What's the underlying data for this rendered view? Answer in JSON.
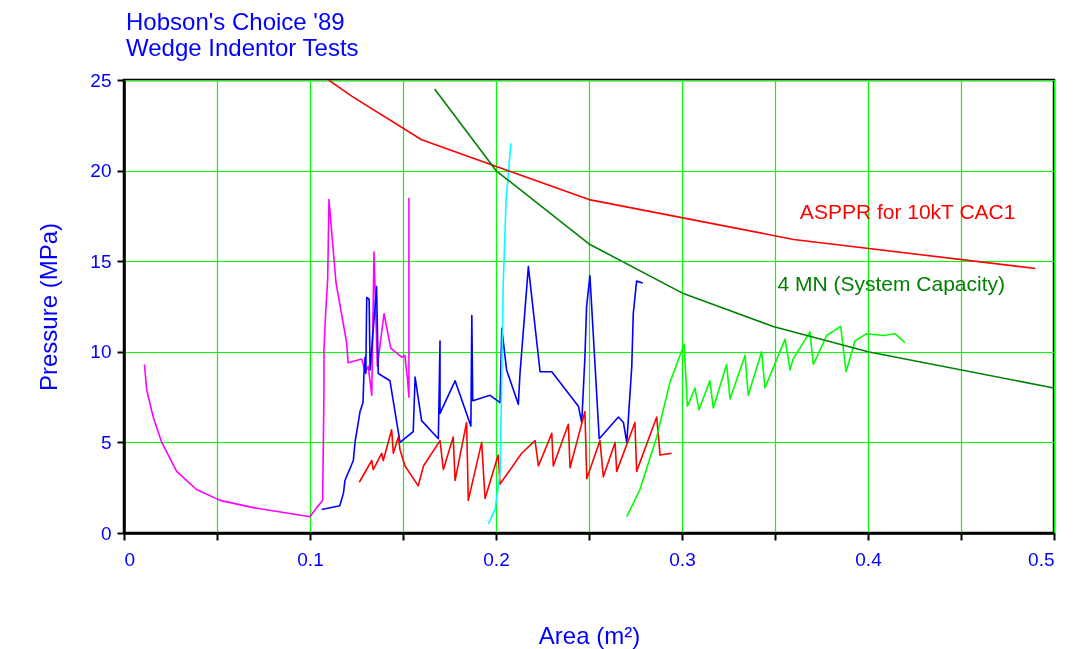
{
  "chart_data": {
    "type": "line",
    "title": "Hobson's Choice '89",
    "subtitle": "Wedge Indentor Tests",
    "xlabel": "Area (m²)",
    "ylabel": "Pressure (MPa)",
    "xlim": [
      0,
      0.5
    ],
    "ylim": [
      0,
      25
    ],
    "xticks": [
      0,
      {
        "value": 0.05,
        "label": null
      },
      0.1,
      {
        "value": 0.15,
        "label": null
      },
      0.2,
      {
        "value": 0.25,
        "label": null
      },
      0.3,
      {
        "value": 0.35,
        "label": null
      },
      0.4,
      {
        "value": 0.45,
        "label": null
      },
      0.5
    ],
    "yticks": [
      0,
      5,
      10,
      15,
      20,
      25
    ],
    "grid": true,
    "marker": "none",
    "line_style": "solid",
    "series": [
      {
        "color": "#ff00ff",
        "x": [
          0.011,
          0.0122,
          0.0157,
          0.0203,
          0.0283,
          0.039,
          0.0516,
          0.0695,
          0.0875,
          0.1,
          0.1036,
          0.1068,
          0.1075,
          0.1075,
          0.1085,
          0.1095,
          0.1102,
          0.112,
          0.114,
          0.1197,
          0.1205,
          0.1278,
          0.1296,
          0.1313,
          0.1332,
          0.1344,
          0.1362,
          0.1398,
          0.1434,
          0.1493,
          0.151,
          0.1523,
          0.1532,
          0.1532
        ],
        "values": [
          9.3,
          7.9,
          6.4,
          5.0,
          3.4,
          2.4,
          1.8,
          1.4,
          1.1,
          0.9,
          1.4,
          1.8,
          7.7,
          10.1,
          12.3,
          14.0,
          18.4,
          16.2,
          13.8,
          10.5,
          9.4,
          9.6,
          8.9,
          9.2,
          7.6,
          15.5,
          9.2,
          12.1,
          10.2,
          9.7,
          9.8,
          8.6,
          7.5,
          18.5
        ]
      },
      {
        "color": "#0000ff",
        "x": [
          0.1063,
          0.116,
          0.118,
          0.1188,
          0.1233,
          0.1242,
          0.1269,
          0.1285,
          0.129,
          0.1296,
          0.13,
          0.1305,
          0.1318,
          0.1323,
          0.1358,
          0.1367,
          0.143,
          0.1484,
          0.1555,
          0.1565,
          0.16,
          0.169,
          0.1699,
          0.1699,
          0.178,
          0.1865,
          0.187,
          0.1875,
          0.1968,
          0.2022,
          0.2031,
          0.2057,
          0.212,
          0.2129,
          0.2174,
          0.2237,
          0.23,
          0.2443,
          0.2461,
          0.2478,
          0.2487,
          0.2505,
          0.2555,
          0.2658,
          0.2685,
          0.2703,
          0.2711,
          0.273,
          0.2738,
          0.2756,
          0.2789
        ],
        "values": [
          1.3,
          1.5,
          2.2,
          2.9,
          4.0,
          5.0,
          6.7,
          7.2,
          8.8,
          9.7,
          8.8,
          13.0,
          12.9,
          9.0,
          13.6,
          8.8,
          8.4,
          5.0,
          5.6,
          8.6,
          6.2,
          5.2,
          10.6,
          6.6,
          8.4,
          5.9,
          12.0,
          7.3,
          7.6,
          7.2,
          11.3,
          9.0,
          7.1,
          8.8,
          14.7,
          8.9,
          8.9,
          7.0,
          6.1,
          9.7,
          12.5,
          14.2,
          5.2,
          6.4,
          6.1,
          5.0,
          6.2,
          9.2,
          12.1,
          13.9,
          13.8
        ]
      },
      {
        "color": "#ff0000",
        "x": [
          0.1265,
          0.1332,
          0.134,
          0.1385,
          0.1394,
          0.1439,
          0.1448,
          0.1475,
          0.1484,
          0.1511,
          0.1582,
          0.161,
          0.1699,
          0.1717,
          0.177,
          0.178,
          0.1842,
          0.1851,
          0.1923,
          0.1941,
          0.2012,
          0.2022,
          0.2138,
          0.221,
          0.2228,
          0.23,
          0.2308,
          0.2389,
          0.2398,
          0.2478,
          0.2488,
          0.2559,
          0.2577,
          0.264,
          0.2649,
          0.2747,
          0.2756,
          0.2864,
          0.2882,
          0.2944
        ],
        "values": [
          2.8,
          4.0,
          3.5,
          4.4,
          4.0,
          5.7,
          4.4,
          5.3,
          4.6,
          3.7,
          2.6,
          3.7,
          5.1,
          3.5,
          5.3,
          2.9,
          6.1,
          1.8,
          5.0,
          1.9,
          4.3,
          2.7,
          4.4,
          5.1,
          3.7,
          5.5,
          3.7,
          6.0,
          3.6,
          6.7,
          3.0,
          5.1,
          3.1,
          5.0,
          3.4,
          6.1,
          3.4,
          6.4,
          4.3,
          4.4
        ]
      },
      {
        "color": "#00ffff",
        "x": [
          0.1959,
          0.1995,
          0.2022,
          0.2031,
          0.2039,
          0.2054,
          0.208
        ],
        "values": [
          0.5,
          1.3,
          3.3,
          8.8,
          13.8,
          18.3,
          21.5
        ]
      },
      {
        "color": "#00ff00",
        "x": [
          0.2703,
          0.2774,
          0.2864,
          0.2935,
          0.3011,
          0.3029,
          0.307,
          0.3091,
          0.315,
          0.3168,
          0.324,
          0.3258,
          0.3339,
          0.3356,
          0.3428,
          0.3446,
          0.3554,
          0.3581,
          0.3597,
          0.3688,
          0.3706,
          0.3778,
          0.3853,
          0.3882,
          0.393,
          0.3993,
          0.4082,
          0.4145,
          0.4199
        ],
        "values": [
          0.9,
          2.4,
          5.3,
          8.3,
          10.4,
          7.0,
          8.0,
          6.8,
          8.4,
          6.9,
          9.3,
          7.4,
          9.8,
          7.6,
          10.0,
          8.0,
          10.7,
          9.0,
          9.6,
          11.1,
          9.3,
          10.9,
          11.4,
          8.9,
          10.6,
          11.0,
          10.9,
          11.0,
          10.5
        ]
      },
      {
        "name": "ASPPR for 10kT CAC1",
        "color": "#ff0000",
        "x": [
          0.11,
          0.1226,
          0.16,
          0.25,
          0.36,
          0.49
        ],
        "values": [
          25,
          24.1,
          21.7,
          18.4,
          16.2,
          14.6
        ]
      },
      {
        "name": "4 MN (System Capacity)",
        "color": "#008000",
        "x": [
          0.167,
          0.2,
          0.25,
          0.3,
          0.349,
          0.4,
          0.5
        ],
        "values": [
          24.5,
          20,
          15.95,
          13.25,
          11.4,
          10,
          8
        ]
      }
    ]
  }
}
